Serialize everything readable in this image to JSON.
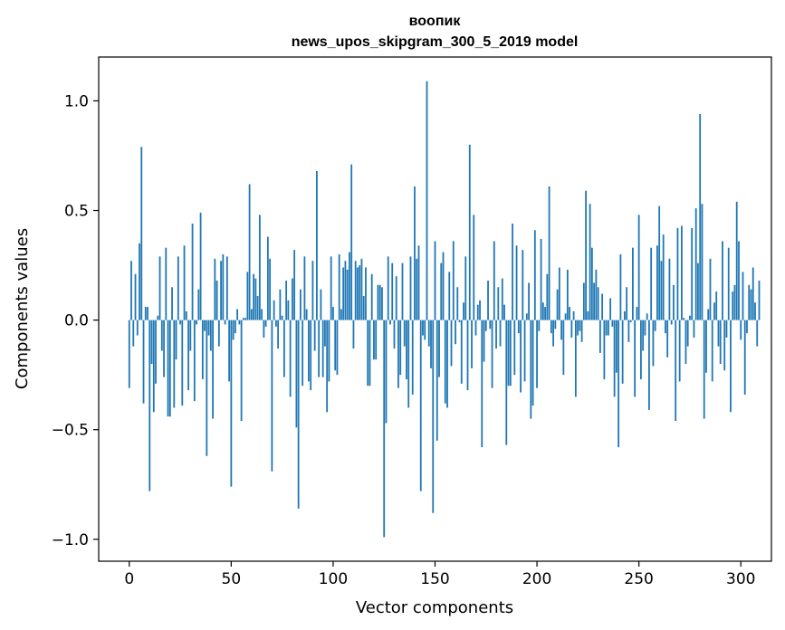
{
  "chart_data": {
    "type": "bar",
    "title": "воопик",
    "subtitle": "news_upos_skipgram_300_5_2019 model",
    "xlabel": "Vector components",
    "ylabel": "Components values",
    "xlim": [
      -15,
      315
    ],
    "ylim": [
      -1.1,
      1.2
    ],
    "x_ticks": [
      0,
      50,
      100,
      150,
      200,
      250,
      300
    ],
    "x_tick_labels": [
      "0",
      "50",
      "100",
      "150",
      "200",
      "250",
      "300"
    ],
    "y_ticks": [
      -1.0,
      -0.5,
      0.0,
      0.5,
      1.0
    ],
    "y_tick_labels": [
      "−1.0",
      "−0.5",
      "0.0",
      "0.5",
      "1.0"
    ],
    "bar_color": "#1f77b4",
    "grid": false,
    "values": [
      -0.31,
      0.27,
      -0.12,
      0.21,
      -0.07,
      0.35,
      0.79,
      -0.38,
      0.06,
      0.06,
      -0.78,
      -0.2,
      -0.42,
      -0.29,
      0.02,
      0.29,
      -0.14,
      -0.26,
      0.33,
      -0.44,
      -0.44,
      0.15,
      -0.4,
      -0.18,
      0.29,
      -0.02,
      -0.39,
      0.34,
      0.04,
      -0.32,
      -0.14,
      0.44,
      -0.37,
      -0.02,
      0.14,
      0.49,
      -0.27,
      -0.05,
      -0.62,
      -0.07,
      -0.14,
      -0.45,
      0.28,
      0.18,
      -0.12,
      0.27,
      0.3,
      -0.02,
      0.29,
      -0.28,
      -0.76,
      -0.09,
      -0.06,
      0.05,
      -0.02,
      -0.46,
      0.01,
      0.01,
      0.22,
      0.62,
      0.05,
      0.21,
      0.19,
      0.11,
      0.48,
      0.05,
      -0.08,
      -0.03,
      0.38,
      0.28,
      -0.69,
      0.09,
      -0.03,
      -0.13,
      0.14,
      0.02,
      -0.26,
      0.18,
      0.09,
      -0.35,
      0.19,
      0.32,
      -0.49,
      -0.86,
      0.14,
      -0.3,
      0.29,
      0.05,
      -0.28,
      -0.32,
      0.27,
      -0.14,
      0.68,
      -0.26,
      0.14,
      -0.26,
      -0.12,
      -0.42,
      -0.28,
      0.29,
      0.06,
      -0.23,
      -0.25,
      0.3,
      0.05,
      0.24,
      0.27,
      0.23,
      0.31,
      0.71,
      -0.13,
      0.27,
      0.24,
      0.25,
      0.28,
      0.11,
      0.24,
      -0.3,
      -0.3,
      0.21,
      -0.18,
      -0.18,
      0.16,
      0.16,
      0.15,
      -0.99,
      -0.47,
      0.29,
      -0.02,
      0.26,
      -0.13,
      0.2,
      -0.31,
      -0.25,
      0.26,
      -0.12,
      -0.27,
      -0.4,
      0.29,
      -0.34,
      0.61,
      0.28,
      0.34,
      -0.78,
      -0.07,
      -0.09,
      1.09,
      -0.12,
      -0.22,
      -0.88,
      0.36,
      -0.55,
      -0.26,
      0.26,
      0.31,
      -0.38,
      -0.4,
      0.22,
      -0.21,
      0.36,
      -0.11,
      0.15,
      -0.01,
      -0.29,
      0.08,
      0.29,
      -0.32,
      0.8,
      -0.22,
      0.48,
      -0.07,
      0.07,
      0.09,
      -0.58,
      -0.19,
      -0.05,
      0.18,
      -0.04,
      -0.31,
      0.36,
      -0.13,
      0.15,
      -0.12,
      0.19,
      0.07,
      -0.57,
      -0.3,
      -0.3,
      0.44,
      -0.25,
      0.34,
      -0.06,
      -0.33,
      0.32,
      -0.28,
      0.03,
      0.17,
      -0.45,
      -0.39,
      0.41,
      -0.31,
      -0.05,
      0.37,
      0.08,
      0.06,
      0.21,
      0.61,
      -0.06,
      -0.12,
      -0.04,
      0.14,
      0.24,
      -0.09,
      -0.25,
      0.03,
      0.23,
      0.06,
      -0.08,
      0.04,
      -0.35,
      -0.07,
      -0.05,
      -0.1,
      0.17,
      0.59,
      0.04,
      0.53,
      0.33,
      0.17,
      0.23,
      0.15,
      -0.15,
      0.12,
      -0.27,
      -0.07,
      -0.07,
      0.1,
      -0.03,
      -0.35,
      -0.24,
      -0.58,
      0.3,
      -0.29,
      0.04,
      0.15,
      -0.1,
      -0.01,
      0.33,
      -0.35,
      0.06,
      0.48,
      -0.27,
      -0.14,
      -0.07,
      0.03,
      -0.41,
      0.33,
      -0.21,
      -0.05,
      0.34,
      0.52,
      0.27,
      0.39,
      -0.06,
      -0.17,
      0.28,
      -0.02,
      0.16,
      -0.46,
      0.42,
      -0.28,
      0.43,
      0.01,
      -0.2,
      -0.12,
      0.02,
      0.42,
      -0.08,
      0.51,
      0.26,
      0.94,
      0.53,
      -0.45,
      -0.24,
      0.05,
      0.28,
      -0.28,
      0.08,
      0.13,
      -0.12,
      -0.2,
      0.36,
      -0.23,
      -0.08,
      0.33,
      -0.42,
      0.13,
      0.16,
      0.54,
      0.36,
      -0.09,
      0.22,
      -0.34,
      -0.06,
      0.16,
      0.14,
      0.24,
      0.08,
      -0.12,
      0.18
    ]
  }
}
